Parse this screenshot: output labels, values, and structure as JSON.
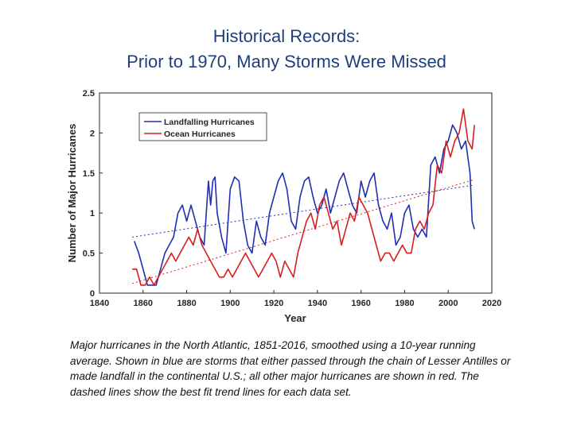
{
  "slide": {
    "title_line1": "Historical Records:",
    "title_line2": "Prior to 1970, Many Storms Were Missed"
  },
  "caption": {
    "lead": "Major hurricanes in the North Atlantic",
    "rest": ", 1851-2016, smoothed using a 10-year running average. Shown in blue are storms that either passed through the chain of Lesser Antilles or made landfall in the continental U.S.; all other major hurricanes are shown in red. The dashed lines show the best fit trend lines for each data set."
  },
  "colors": {
    "landfalling": "#1f2fb0",
    "ocean": "#d81e1e",
    "title": "#1f3f7a"
  },
  "chart_data": {
    "type": "line",
    "title": "",
    "xlabel": "Year",
    "ylabel": "Number of Major Hurricanes",
    "xlim": [
      1840,
      2020
    ],
    "ylim": [
      0,
      2.5
    ],
    "xticks": [
      1840,
      1860,
      1880,
      1900,
      1920,
      1940,
      1960,
      1980,
      2000,
      2020
    ],
    "yticks": [
      0,
      0.5,
      1,
      1.5,
      2,
      2.5
    ],
    "ytick_labels": [
      "0",
      "0.5",
      "1",
      "1.5",
      "2",
      "2.5"
    ],
    "grid": false,
    "legend_position": "top-left",
    "series": [
      {
        "name": "Landfalling Hurricanes",
        "color": "#1f2fb0",
        "x": [
          1856,
          1858,
          1860,
          1862,
          1864,
          1866,
          1868,
          1870,
          1872,
          1874,
          1876,
          1878,
          1880,
          1882,
          1884,
          1886,
          1888,
          1890,
          1891,
          1892,
          1893,
          1894,
          1896,
          1898,
          1900,
          1902,
          1904,
          1906,
          1908,
          1910,
          1912,
          1914,
          1916,
          1918,
          1920,
          1922,
          1924,
          1926,
          1928,
          1930,
          1932,
          1934,
          1936,
          1938,
          1940,
          1942,
          1944,
          1946,
          1948,
          1950,
          1952,
          1954,
          1956,
          1958,
          1960,
          1962,
          1964,
          1966,
          1968,
          1970,
          1972,
          1974,
          1976,
          1978,
          1980,
          1982,
          1984,
          1986,
          1988,
          1990,
          1992,
          1994,
          1996,
          1998,
          2000,
          2002,
          2004,
          2006,
          2008,
          2010,
          2011,
          2012
        ],
        "y": [
          0.65,
          0.5,
          0.3,
          0.1,
          0.1,
          0.1,
          0.3,
          0.5,
          0.6,
          0.7,
          1.0,
          1.1,
          0.9,
          1.1,
          0.9,
          0.7,
          0.6,
          1.4,
          1.1,
          1.4,
          1.45,
          1.0,
          0.7,
          0.5,
          1.3,
          1.45,
          1.4,
          0.9,
          0.6,
          0.5,
          0.9,
          0.7,
          0.6,
          1.0,
          1.2,
          1.4,
          1.5,
          1.3,
          0.9,
          0.8,
          1.2,
          1.4,
          1.45,
          1.2,
          1.0,
          1.1,
          1.3,
          1.0,
          1.2,
          1.4,
          1.5,
          1.3,
          1.1,
          1.0,
          1.4,
          1.2,
          1.4,
          1.5,
          1.1,
          0.9,
          0.8,
          1.0,
          0.6,
          0.7,
          1.0,
          1.1,
          0.8,
          0.7,
          0.8,
          0.7,
          1.6,
          1.7,
          1.5,
          1.8,
          1.9,
          2.1,
          2.0,
          1.8,
          1.9,
          1.5,
          0.9,
          0.8
        ]
      },
      {
        "name": "Ocean Hurricanes",
        "color": "#d81e1e",
        "x": [
          1855,
          1857,
          1859,
          1861,
          1863,
          1865,
          1867,
          1869,
          1871,
          1873,
          1875,
          1877,
          1879,
          1881,
          1883,
          1885,
          1887,
          1889,
          1891,
          1893,
          1895,
          1897,
          1899,
          1901,
          1903,
          1905,
          1907,
          1909,
          1911,
          1913,
          1915,
          1917,
          1919,
          1921,
          1923,
          1925,
          1927,
          1929,
          1931,
          1933,
          1935,
          1937,
          1939,
          1941,
          1943,
          1945,
          1947,
          1949,
          1951,
          1953,
          1955,
          1957,
          1959,
          1961,
          1963,
          1965,
          1967,
          1969,
          1971,
          1973,
          1975,
          1977,
          1979,
          1981,
          1983,
          1985,
          1987,
          1989,
          1991,
          1993,
          1995,
          1997,
          1999,
          2001,
          2003,
          2005,
          2007,
          2009,
          2011,
          2012
        ],
        "y": [
          0.3,
          0.3,
          0.1,
          0.1,
          0.2,
          0.1,
          0.2,
          0.3,
          0.4,
          0.5,
          0.4,
          0.5,
          0.6,
          0.7,
          0.6,
          0.8,
          0.6,
          0.5,
          0.4,
          0.3,
          0.2,
          0.2,
          0.3,
          0.2,
          0.3,
          0.4,
          0.5,
          0.4,
          0.3,
          0.2,
          0.3,
          0.4,
          0.5,
          0.4,
          0.2,
          0.4,
          0.3,
          0.2,
          0.5,
          0.7,
          0.9,
          1.0,
          0.8,
          1.1,
          1.2,
          1.0,
          0.8,
          0.9,
          0.6,
          0.8,
          1.0,
          0.9,
          1.2,
          1.1,
          1.0,
          0.8,
          0.6,
          0.4,
          0.5,
          0.5,
          0.4,
          0.5,
          0.6,
          0.5,
          0.5,
          0.8,
          0.9,
          0.8,
          1.0,
          1.1,
          1.6,
          1.5,
          1.9,
          1.7,
          1.9,
          2.0,
          2.3,
          1.9,
          1.8,
          2.1
        ]
      }
    ],
    "trend_lines": [
      {
        "series": "Landfalling Hurricanes",
        "x": [
          1855,
          2012
        ],
        "y": [
          0.7,
          1.35
        ]
      },
      {
        "series": "Ocean Hurricanes",
        "x": [
          1855,
          2012
        ],
        "y": [
          0.12,
          1.42
        ]
      }
    ]
  }
}
